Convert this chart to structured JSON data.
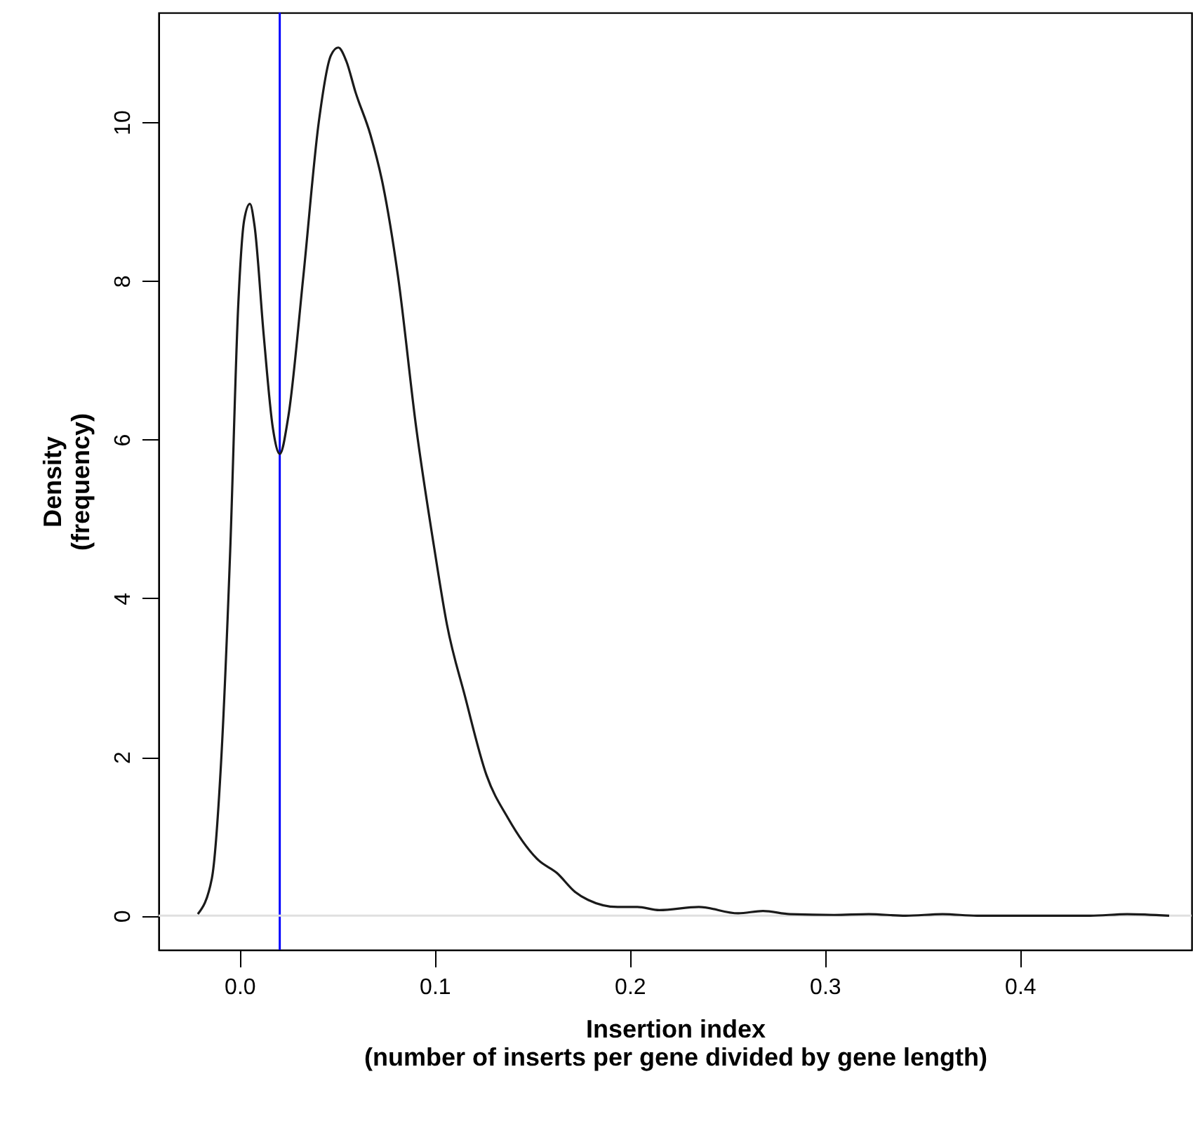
{
  "chart_data": {
    "type": "line",
    "xlabel": "Insertion index\n(number of inserts per gene divided by gene length)",
    "ylabel": "Density\n(frequency)",
    "series": [
      {
        "color": "#1a1a1a",
        "x": [
          -0.0214,
          -0.0142,
          -0.0095,
          -0.0048,
          -0.0007,
          0.0024,
          0.0053,
          0.0077,
          0.0124,
          0.0171,
          0.0206,
          0.025,
          0.0327,
          0.0406,
          0.0468,
          0.0506,
          0.0547,
          0.0594,
          0.0671,
          0.0734,
          0.0812,
          0.0906,
          0.1,
          0.1063,
          0.1156,
          0.1266,
          0.1376,
          0.1532,
          0.1626,
          0.172,
          0.1786,
          0.1938,
          0.2039,
          0.2152,
          0.2354,
          0.2556,
          0.2683,
          0.2822,
          0.3048,
          0.3225,
          0.3414,
          0.3604,
          0.378,
          0.4361,
          0.455,
          0.4765
        ],
        "values": [
          0.02,
          0.47,
          1.92,
          4.6,
          7.68,
          8.77,
          8.97,
          8.69,
          7.31,
          6.14,
          5.82,
          6.29,
          8.06,
          10.0,
          10.84,
          10.94,
          10.77,
          10.38,
          9.84,
          9.22,
          8.06,
          6.14,
          4.6,
          3.67,
          2.76,
          1.77,
          1.23,
          0.7,
          0.54,
          0.3,
          0.2,
          0.11,
          0.11,
          0.07,
          0.11,
          0.03,
          0.06,
          0.02,
          0.01,
          0.02,
          0.0,
          0.02,
          0.0,
          0.0,
          0.02,
          0.0
        ]
      }
    ],
    "xlim": [
      -0.0415,
      0.488
    ],
    "ylim": [
      -0.43,
      11.38
    ],
    "xticks": [
      {
        "value": 0,
        "label": "0.0"
      },
      0.1,
      0.2,
      0.3,
      0.4
    ],
    "yticks": [
      0,
      2,
      4,
      6,
      8,
      10
    ],
    "ref_lines": [
      {
        "axis": "x",
        "value": 0.0206,
        "color": "#0000ff"
      },
      {
        "axis": "y",
        "value": 0,
        "color": "#e0e0e0"
      }
    ],
    "grid": false,
    "line_style": "solid",
    "marker": "none"
  }
}
